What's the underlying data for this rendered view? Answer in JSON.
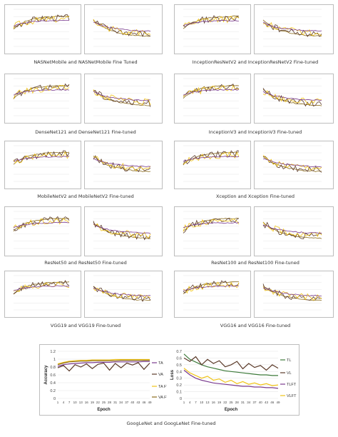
{
  "colors": {
    "accuracy": "#5b3a29",
    "train": "#8a6a1a",
    "val": "#7a3b8f",
    "train_ft": "#f0c419",
    "val_ft": "#3d7a3a",
    "grid": "#e6e6e6",
    "frame": "#bdbdbd"
  },
  "captions": [
    "NASNetMobile  and  NASNetMobile Fine Tuned",
    "InceptionResNetV2 and InceptionResNetV2 Fine-tuned",
    "DenseNet121 and DenseNet121 Fine-tuned",
    "InceptionV3 and InceptionV3 Fine-tuned",
    "MobileNetV2 and MobileNetV2 Fine-tuned",
    "Xception and Xception Fine-tuned",
    "ResNet50 and ResNet50 Fine-tuned",
    "ResNet100 and ResNet100 Fine-tuned",
    "VGG19  and  VGG19  Fine-tuned",
    "VGG16 and VGG16 Fine-tuned",
    "GoogLeNet and GoogLeNet Fine-tuned"
  ],
  "chart_data": [
    {
      "type": "line",
      "ylabel": "Accuracy",
      "xlabel": "Epoch",
      "x_ticks": [
        "1",
        "4",
        "7",
        "10",
        "13",
        "16",
        "19",
        "22",
        "25",
        "28",
        "31",
        "34",
        "37",
        "40",
        "43",
        "46",
        "49"
      ],
      "y_ticks": [
        "0",
        "0.2",
        "0.4",
        "0.6",
        "0.8",
        "1",
        "1.2"
      ],
      "ylim": [
        0,
        1.2
      ],
      "legend": [
        "TA",
        "VA",
        "TA FT",
        "VA FT"
      ],
      "series": [
        {
          "name": "TA",
          "values": [
            0.82,
            0.86,
            0.88,
            0.89,
            0.9,
            0.91,
            0.91,
            0.92,
            0.92,
            0.92,
            0.93,
            0.93,
            0.93,
            0.93,
            0.93,
            0.94,
            0.94
          ]
        },
        {
          "name": "VA",
          "values": [
            0.78,
            0.84,
            0.7,
            0.86,
            0.8,
            0.88,
            0.76,
            0.87,
            0.9,
            0.72,
            0.89,
            0.78,
            0.9,
            0.85,
            0.91,
            0.74,
            0.9
          ]
        },
        {
          "name": "TA FT",
          "values": [
            0.88,
            0.92,
            0.95,
            0.96,
            0.97,
            0.97,
            0.98,
            0.98,
            0.98,
            0.98,
            0.99,
            0.99,
            0.99,
            0.99,
            0.99,
            0.99,
            0.99
          ]
        },
        {
          "name": "VA FT",
          "values": [
            0.86,
            0.9,
            0.93,
            0.94,
            0.95,
            0.95,
            0.96,
            0.96,
            0.96,
            0.96,
            0.96,
            0.97,
            0.97,
            0.97,
            0.97,
            0.97,
            0.97
          ]
        }
      ]
    },
    {
      "type": "line",
      "ylabel": "Loss",
      "xlabel": "Epoch",
      "x_ticks": [
        "1",
        "4",
        "7",
        "10",
        "13",
        "16",
        "19",
        "22",
        "25",
        "28",
        "31",
        "34",
        "37",
        "40",
        "43",
        "46",
        "49"
      ],
      "y_ticks": [
        "0",
        "0.1",
        "0.2",
        "0.3",
        "0.4",
        "0.5",
        "0.6",
        "0.7"
      ],
      "ylim": [
        0,
        0.7
      ],
      "legend": [
        "TL",
        "VL",
        "TLFT",
        "VLFT"
      ],
      "series": [
        {
          "name": "TL",
          "values": [
            0.66,
            0.58,
            0.54,
            0.5,
            0.47,
            0.45,
            0.43,
            0.41,
            0.4,
            0.39,
            0.38,
            0.37,
            0.36,
            0.35,
            0.35,
            0.34,
            0.34
          ]
        },
        {
          "name": "VL",
          "values": [
            0.6,
            0.55,
            0.62,
            0.5,
            0.58,
            0.52,
            0.56,
            0.47,
            0.5,
            0.55,
            0.44,
            0.52,
            0.46,
            0.49,
            0.42,
            0.5,
            0.45
          ]
        },
        {
          "name": "TLFT",
          "values": [
            0.42,
            0.35,
            0.3,
            0.27,
            0.25,
            0.23,
            0.22,
            0.21,
            0.2,
            0.19,
            0.18,
            0.18,
            0.17,
            0.17,
            0.16,
            0.16,
            0.15
          ]
        },
        {
          "name": "VLFT",
          "values": [
            0.45,
            0.38,
            0.34,
            0.3,
            0.33,
            0.27,
            0.29,
            0.24,
            0.27,
            0.22,
            0.25,
            0.21,
            0.23,
            0.2,
            0.22,
            0.19,
            0.2
          ]
        }
      ]
    }
  ]
}
